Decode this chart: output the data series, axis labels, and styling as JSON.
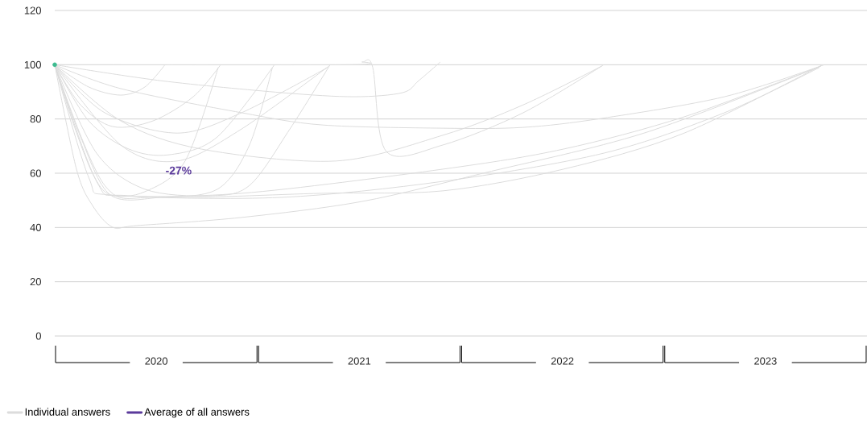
{
  "chart_data": {
    "type": "line",
    "xlim": [
      2020,
      2024
    ],
    "xticks": [
      {
        "value": 2020.5,
        "label": "2020"
      },
      {
        "value": 2021.5,
        "label": "2021"
      },
      {
        "value": 2022.5,
        "label": "2022"
      },
      {
        "value": 2023.5,
        "label": "2023"
      }
    ],
    "ylim": [
      0,
      120
    ],
    "yticks": [
      0,
      20,
      40,
      60,
      80,
      100,
      120
    ],
    "grid": "y",
    "legend": "bottom left",
    "annotations": [
      {
        "text": "-27%",
        "x": 2020.61,
        "y": 61
      }
    ],
    "series": [
      {
        "name": "Individual answers",
        "color": "#dcdcdc",
        "x": [
          2020,
          2020.167,
          2020.325,
          2020.444,
          2020.543
        ],
        "values": [
          100,
          91.8,
          88.8,
          91.8,
          100
        ]
      },
      {
        "color": "#dcdcdc",
        "x": [
          2020,
          2020.127,
          2020.285,
          2020.484,
          2020.682,
          2020.817
        ],
        "values": [
          100,
          85.2,
          77.2,
          79.3,
          88.2,
          100
        ]
      },
      {
        "color": "#dcdcdc",
        "x": [
          2020,
          2020.087,
          2020.186,
          2020.274,
          2020.444,
          2020.642,
          2020.805
        ],
        "values": [
          100,
          79.3,
          60,
          52,
          53.2,
          64.5,
          99
        ]
      },
      {
        "color": "#dcdcdc",
        "x": [
          2020,
          2020.167,
          2020.365,
          2020.563,
          2020.801,
          2021.082
        ],
        "values": [
          100,
          79.3,
          68.9,
          66.8,
          73.4,
          100
        ]
      },
      {
        "color": "#dcdcdc",
        "x": [
          2020,
          2020.127,
          2020.274,
          2020.523,
          2020.801,
          2020.959,
          2021.072
        ],
        "values": [
          100,
          73.4,
          52,
          51.1,
          54.1,
          70.4,
          99
        ]
      },
      {
        "color": "#dcdcdc",
        "x": [
          2020,
          2020.206,
          2020.444,
          2020.761,
          2020.959,
          2021.158,
          2021.356
        ],
        "values": [
          100,
          67.4,
          54.1,
          51.7,
          55.5,
          76.3,
          100
        ]
      },
      {
        "color": "#dcdcdc",
        "x": [
          2020,
          2020.246,
          2020.603,
          2020.92,
          2021.344
        ],
        "values": [
          100,
          82.3,
          74.8,
          82.3,
          99
        ]
      },
      {
        "color": "#dcdcdc",
        "x": [
          2020,
          2020.325,
          2020.603,
          2020.92,
          2021.35
        ],
        "values": [
          100,
          70.4,
          64.5,
          76.3,
          99.5
        ]
      },
      {
        "color": "#dcdcdc",
        "x": [
          2020,
          2021.435,
          2021.514,
          2021.566,
          2021.633,
          2021.911,
          2022.307,
          2022.704
        ],
        "values": [
          100,
          100,
          101,
          99,
          68,
          70.4,
          82.3,
          100
        ]
      },
      {
        "color": "#dcdcdc",
        "x": [
          2020,
          2020.523,
          2021.118,
          2021.475,
          2021.713,
          2021.792,
          2021.899
        ],
        "values": [
          100,
          94.1,
          89.7,
          88.2,
          89.7,
          94.1,
          101
        ]
      },
      {
        "color": "#dcdcdc",
        "x": [
          2020,
          2020.325,
          2020.92,
          2021.316,
          2021.911,
          2022.307,
          2022.692,
          2023.298,
          2023.79
        ],
        "values": [
          100,
          91.2,
          82.3,
          77.8,
          76.6,
          76.9,
          80.2,
          88.2,
          100
        ]
      },
      {
        "color": "#dcdcdc",
        "x": [
          2020,
          2020.325,
          2020.722,
          2021.384,
          2021.911,
          2022.307,
          2022.694
        ],
        "values": [
          100,
          79.3,
          68.9,
          64.5,
          74,
          85.2,
          99.5
        ]
      },
      {
        "color": "#dcdcdc",
        "x": [
          2020,
          2020.167,
          2020.274,
          2020.92,
          2021.911,
          2022.505,
          2023.1,
          2023.774
        ],
        "values": [
          100,
          58.5,
          52,
          52.6,
          61.5,
          68.9,
          80.8,
          99.5
        ]
      },
      {
        "color": "#dcdcdc",
        "x": [
          2020,
          2020.206,
          2020.365,
          2021.118,
          2021.911,
          2022.704,
          2023.298,
          2023.766
        ],
        "values": [
          100,
          57,
          51.7,
          51.1,
          57,
          67.4,
          82.3,
          99
        ]
      },
      {
        "color": "#dcdcdc",
        "x": [
          2020,
          2020.246,
          2020.523,
          2021.316,
          2021.911,
          2022.505,
          2023.1,
          2023.782
        ],
        "values": [
          100,
          55.5,
          51.1,
          52.6,
          53.5,
          61.5,
          74.8,
          100
        ]
      },
      {
        "color": "#dcdcdc",
        "x": [
          2020,
          2020.107,
          2020.186,
          2020.285,
          2020.404,
          2020.92,
          2021.514,
          2022.109,
          2022.902,
          2023.758
        ],
        "values": [
          100,
          61.5,
          48.1,
          40.1,
          40.7,
          43.7,
          49.6,
          60,
          74.8,
          99
        ]
      },
      {
        "name": "Average of all answers",
        "color": "#5b3a9b"
      },
      {
        "type": "scatter",
        "color": "#3dbb8f",
        "x": [
          2020
        ],
        "values": [
          100
        ]
      }
    ]
  }
}
